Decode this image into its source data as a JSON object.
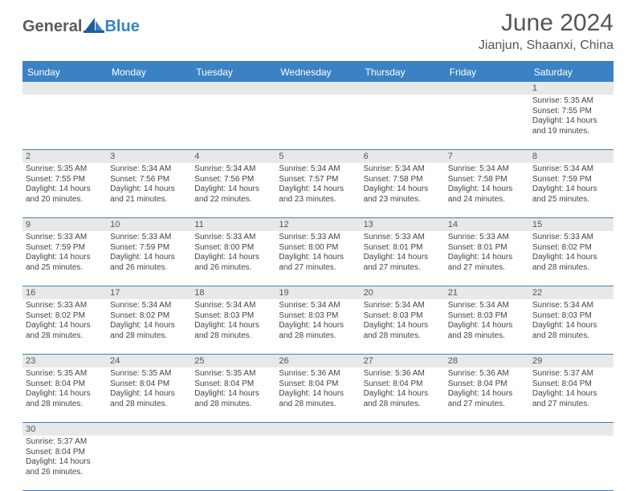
{
  "logo": {
    "text1": "General",
    "text2": "Blue"
  },
  "title": "June 2024",
  "location": "Jianjun, Shaanxi, China",
  "colors": {
    "header_blue": "#3b82c4",
    "stripe_gray": "#e8e8e8",
    "text": "#444444",
    "title_text": "#555555"
  },
  "day_names": [
    "Sunday",
    "Monday",
    "Tuesday",
    "Wednesday",
    "Thursday",
    "Friday",
    "Saturday"
  ],
  "weeks": [
    [
      null,
      null,
      null,
      null,
      null,
      null,
      {
        "n": "1",
        "sr": "Sunrise: 5:35 AM",
        "ss": "Sunset: 7:55 PM",
        "d1": "Daylight: 14 hours",
        "d2": "and 19 minutes."
      }
    ],
    [
      {
        "n": "2",
        "sr": "Sunrise: 5:35 AM",
        "ss": "Sunset: 7:55 PM",
        "d1": "Daylight: 14 hours",
        "d2": "and 20 minutes."
      },
      {
        "n": "3",
        "sr": "Sunrise: 5:34 AM",
        "ss": "Sunset: 7:56 PM",
        "d1": "Daylight: 14 hours",
        "d2": "and 21 minutes."
      },
      {
        "n": "4",
        "sr": "Sunrise: 5:34 AM",
        "ss": "Sunset: 7:56 PM",
        "d1": "Daylight: 14 hours",
        "d2": "and 22 minutes."
      },
      {
        "n": "5",
        "sr": "Sunrise: 5:34 AM",
        "ss": "Sunset: 7:57 PM",
        "d1": "Daylight: 14 hours",
        "d2": "and 23 minutes."
      },
      {
        "n": "6",
        "sr": "Sunrise: 5:34 AM",
        "ss": "Sunset: 7:58 PM",
        "d1": "Daylight: 14 hours",
        "d2": "and 23 minutes."
      },
      {
        "n": "7",
        "sr": "Sunrise: 5:34 AM",
        "ss": "Sunset: 7:58 PM",
        "d1": "Daylight: 14 hours",
        "d2": "and 24 minutes."
      },
      {
        "n": "8",
        "sr": "Sunrise: 5:34 AM",
        "ss": "Sunset: 7:59 PM",
        "d1": "Daylight: 14 hours",
        "d2": "and 25 minutes."
      }
    ],
    [
      {
        "n": "9",
        "sr": "Sunrise: 5:33 AM",
        "ss": "Sunset: 7:59 PM",
        "d1": "Daylight: 14 hours",
        "d2": "and 25 minutes."
      },
      {
        "n": "10",
        "sr": "Sunrise: 5:33 AM",
        "ss": "Sunset: 7:59 PM",
        "d1": "Daylight: 14 hours",
        "d2": "and 26 minutes."
      },
      {
        "n": "11",
        "sr": "Sunrise: 5:33 AM",
        "ss": "Sunset: 8:00 PM",
        "d1": "Daylight: 14 hours",
        "d2": "and 26 minutes."
      },
      {
        "n": "12",
        "sr": "Sunrise: 5:33 AM",
        "ss": "Sunset: 8:00 PM",
        "d1": "Daylight: 14 hours",
        "d2": "and 27 minutes."
      },
      {
        "n": "13",
        "sr": "Sunrise: 5:33 AM",
        "ss": "Sunset: 8:01 PM",
        "d1": "Daylight: 14 hours",
        "d2": "and 27 minutes."
      },
      {
        "n": "14",
        "sr": "Sunrise: 5:33 AM",
        "ss": "Sunset: 8:01 PM",
        "d1": "Daylight: 14 hours",
        "d2": "and 27 minutes."
      },
      {
        "n": "15",
        "sr": "Sunrise: 5:33 AM",
        "ss": "Sunset: 8:02 PM",
        "d1": "Daylight: 14 hours",
        "d2": "and 28 minutes."
      }
    ],
    [
      {
        "n": "16",
        "sr": "Sunrise: 5:33 AM",
        "ss": "Sunset: 8:02 PM",
        "d1": "Daylight: 14 hours",
        "d2": "and 28 minutes."
      },
      {
        "n": "17",
        "sr": "Sunrise: 5:34 AM",
        "ss": "Sunset: 8:02 PM",
        "d1": "Daylight: 14 hours",
        "d2": "and 28 minutes."
      },
      {
        "n": "18",
        "sr": "Sunrise: 5:34 AM",
        "ss": "Sunset: 8:03 PM",
        "d1": "Daylight: 14 hours",
        "d2": "and 28 minutes."
      },
      {
        "n": "19",
        "sr": "Sunrise: 5:34 AM",
        "ss": "Sunset: 8:03 PM",
        "d1": "Daylight: 14 hours",
        "d2": "and 28 minutes."
      },
      {
        "n": "20",
        "sr": "Sunrise: 5:34 AM",
        "ss": "Sunset: 8:03 PM",
        "d1": "Daylight: 14 hours",
        "d2": "and 28 minutes."
      },
      {
        "n": "21",
        "sr": "Sunrise: 5:34 AM",
        "ss": "Sunset: 8:03 PM",
        "d1": "Daylight: 14 hours",
        "d2": "and 28 minutes."
      },
      {
        "n": "22",
        "sr": "Sunrise: 5:34 AM",
        "ss": "Sunset: 8:03 PM",
        "d1": "Daylight: 14 hours",
        "d2": "and 28 minutes."
      }
    ],
    [
      {
        "n": "23",
        "sr": "Sunrise: 5:35 AM",
        "ss": "Sunset: 8:04 PM",
        "d1": "Daylight: 14 hours",
        "d2": "and 28 minutes."
      },
      {
        "n": "24",
        "sr": "Sunrise: 5:35 AM",
        "ss": "Sunset: 8:04 PM",
        "d1": "Daylight: 14 hours",
        "d2": "and 28 minutes."
      },
      {
        "n": "25",
        "sr": "Sunrise: 5:35 AM",
        "ss": "Sunset: 8:04 PM",
        "d1": "Daylight: 14 hours",
        "d2": "and 28 minutes."
      },
      {
        "n": "26",
        "sr": "Sunrise: 5:36 AM",
        "ss": "Sunset: 8:04 PM",
        "d1": "Daylight: 14 hours",
        "d2": "and 28 minutes."
      },
      {
        "n": "27",
        "sr": "Sunrise: 5:36 AM",
        "ss": "Sunset: 8:04 PM",
        "d1": "Daylight: 14 hours",
        "d2": "and 28 minutes."
      },
      {
        "n": "28",
        "sr": "Sunrise: 5:36 AM",
        "ss": "Sunset: 8:04 PM",
        "d1": "Daylight: 14 hours",
        "d2": "and 27 minutes."
      },
      {
        "n": "29",
        "sr": "Sunrise: 5:37 AM",
        "ss": "Sunset: 8:04 PM",
        "d1": "Daylight: 14 hours",
        "d2": "and 27 minutes."
      }
    ],
    [
      {
        "n": "30",
        "sr": "Sunrise: 5:37 AM",
        "ss": "Sunset: 8:04 PM",
        "d1": "Daylight: 14 hours",
        "d2": "and 26 minutes."
      },
      null,
      null,
      null,
      null,
      null,
      null
    ]
  ]
}
